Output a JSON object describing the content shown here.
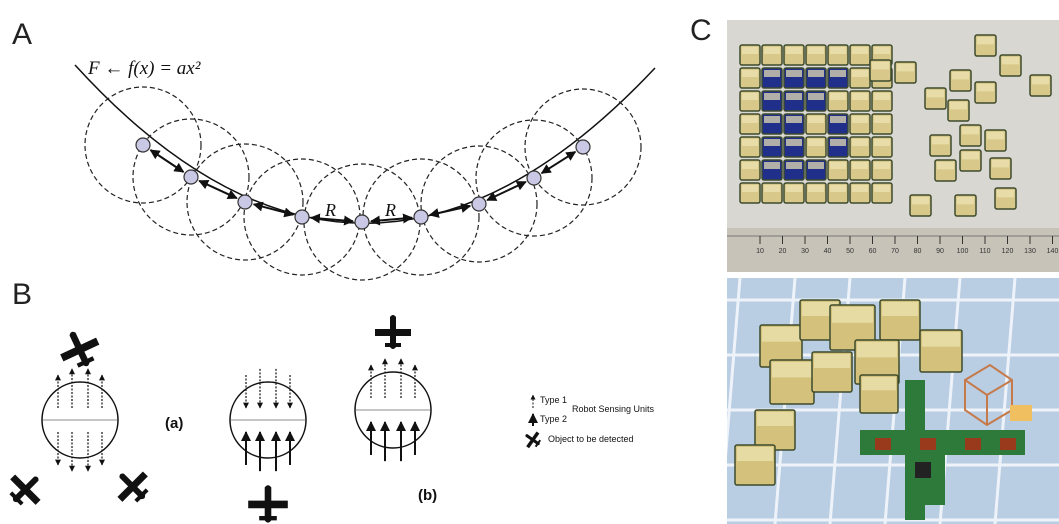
{
  "panels": {
    "a": {
      "label": "A",
      "formula": "F ← f(x) = ax²",
      "distance_labels": [
        "R",
        "R"
      ]
    },
    "b": {
      "label": "B",
      "config_labels": [
        "(a)",
        "(b)"
      ],
      "legend": {
        "type1": "Type 1",
        "type2": "Type 2",
        "group": "Robot Sensing Units",
        "object": "Object to be detected"
      }
    },
    "c": {
      "label": "C",
      "ruler_ticks": [
        10,
        20,
        30,
        40,
        50,
        60,
        70,
        80,
        90,
        100,
        110,
        120,
        130,
        140
      ]
    }
  }
}
